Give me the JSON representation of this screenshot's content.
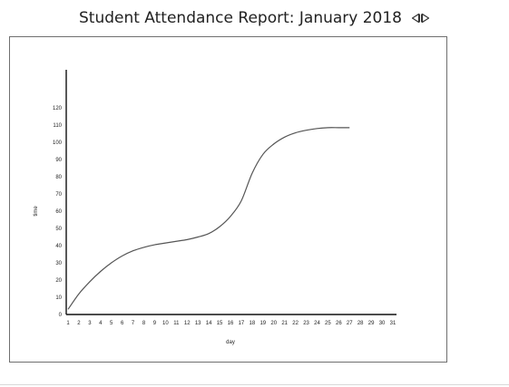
{
  "header": {
    "title": "Student Attendance Report: January 2018",
    "prev_icon": "triangle-left-icon",
    "next_icon": "triangle-right-icon"
  },
  "chart_data": {
    "type": "line",
    "title": "",
    "xlabel": "day",
    "ylabel": "time",
    "xlim": [
      1,
      31
    ],
    "ylim": [
      0,
      120
    ],
    "xticks": [
      1,
      2,
      3,
      4,
      5,
      6,
      7,
      8,
      9,
      10,
      11,
      12,
      13,
      14,
      15,
      16,
      17,
      18,
      19,
      20,
      21,
      22,
      23,
      24,
      25,
      26,
      27,
      28,
      29,
      30,
      31
    ],
    "yticks": [
      0,
      10,
      20,
      30,
      40,
      50,
      60,
      70,
      80,
      90,
      100,
      110,
      120
    ],
    "grid": false,
    "series": [
      {
        "x": [
          1,
          2,
          3,
          4,
          5,
          6,
          7,
          8,
          9,
          10,
          11,
          12,
          13,
          14,
          15,
          16,
          17,
          18,
          19,
          20,
          21,
          22,
          23,
          24,
          25,
          26,
          27
        ],
        "y": [
          3,
          12,
          19,
          25,
          30,
          34,
          37,
          39,
          40.5,
          41.5,
          42.5,
          43.5,
          45,
          47,
          51,
          57,
          66,
          82,
          93,
          99,
          103,
          105.5,
          107,
          108,
          108.5,
          108.5,
          108.5
        ]
      }
    ]
  }
}
